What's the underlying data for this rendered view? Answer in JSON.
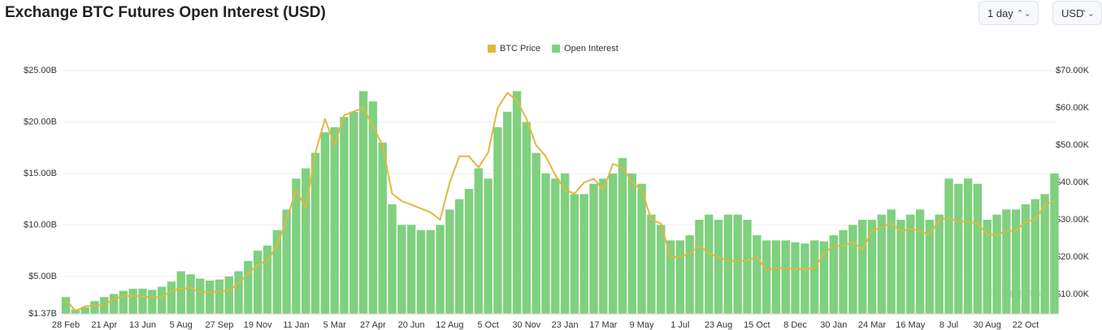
{
  "header": {
    "title": "Exchange BTC Futures Open Interest (USD)",
    "interval": "1 day",
    "currency": "USD"
  },
  "chart_data": {
    "type": "bar",
    "watermark": "coinglass",
    "grid": true,
    "legend": "top",
    "categories": [
      "28 Feb",
      null,
      null,
      null,
      "21 Apr",
      null,
      null,
      null,
      "13 Jun",
      null,
      null,
      null,
      "5 Aug",
      null,
      null,
      null,
      "27 Sep",
      null,
      null,
      null,
      "19 Nov",
      null,
      null,
      null,
      "11 Jan",
      null,
      null,
      null,
      "5 Mar",
      null,
      null,
      null,
      "27 Apr",
      null,
      null,
      null,
      "20 Jun",
      null,
      null,
      null,
      "12 Aug",
      null,
      null,
      null,
      "5 Oct",
      null,
      null,
      null,
      "30 Nov",
      null,
      null,
      null,
      "23 Jan",
      null,
      null,
      null,
      "17 Mar",
      null,
      null,
      null,
      "9 May",
      null,
      null,
      null,
      "1 Jul",
      null,
      null,
      null,
      "23 Aug",
      null,
      null,
      null,
      "15 Oct",
      null,
      null,
      null,
      "8 Dec",
      null,
      null,
      null,
      "30 Jan",
      null,
      null,
      null,
      "24 Mar",
      null,
      null,
      null,
      "16 May",
      null,
      null,
      null,
      "8 Jul",
      null,
      null,
      null,
      "30 Aug",
      null,
      null,
      null,
      "22 Oct",
      null,
      null,
      null
    ],
    "ylim": [
      1.37,
      25
    ],
    "yticks": [
      {
        "value": 1.37,
        "label": "$1.37B"
      },
      {
        "value": 5,
        "label": "$5.00B"
      },
      {
        "value": 10,
        "label": "$10.00B"
      },
      {
        "value": 15,
        "label": "$15.00B"
      },
      {
        "value": 20,
        "label": "$20.00B"
      },
      {
        "value": 25,
        "label": "$25.00B"
      }
    ],
    "y2lim": [
      4.78,
      70
    ],
    "y2ticks": [
      {
        "value": 10,
        "label": "$10.00K"
      },
      {
        "value": 20,
        "label": "$20.00K"
      },
      {
        "value": 30,
        "label": "$30.00K"
      },
      {
        "value": 40,
        "label": "$40.00K"
      },
      {
        "value": 50,
        "label": "$50.00K"
      },
      {
        "value": 60,
        "label": "$60.00K"
      },
      {
        "value": 70,
        "label": "$70.00K"
      }
    ],
    "series": [
      {
        "name": "BTC Price",
        "type": "line",
        "axis": "y2",
        "color": "#e0b83e",
        "values": [
          8.7,
          5.5,
          6.8,
          7.0,
          7.1,
          8.8,
          9.5,
          9.6,
          9.4,
          9.2,
          9.2,
          11.0,
          11.5,
          11.8,
          10.5,
          10.6,
          10.8,
          11.0,
          13.0,
          15.5,
          18.0,
          19,
          23,
          30,
          38,
          33,
          48,
          57,
          50,
          58,
          59,
          60,
          55,
          50,
          37,
          35,
          34,
          33,
          32,
          30,
          40,
          47,
          47,
          44,
          48,
          60,
          64,
          62,
          57,
          50,
          47,
          42,
          38,
          37,
          40,
          41,
          38,
          45,
          44,
          40,
          38,
          30,
          29,
          20,
          20,
          21,
          23,
          21,
          20,
          19,
          19,
          19,
          20,
          16.5,
          17,
          17,
          16.8,
          16.8,
          17,
          21,
          23,
          23,
          24,
          22,
          27,
          28,
          29,
          27,
          27.5,
          27,
          26,
          30,
          30.5,
          29.5,
          29.5,
          29,
          26,
          26,
          27,
          27,
          29.5,
          30,
          34,
          35
        ]
      },
      {
        "name": "Open Interest",
        "type": "bar",
        "axis": "y",
        "color": "#7fd07f",
        "values": [
          3.0,
          1.8,
          2.0,
          2.6,
          3.0,
          3.3,
          3.6,
          3.8,
          3.8,
          3.7,
          4.0,
          4.5,
          5.5,
          5.2,
          4.8,
          4.6,
          4.7,
          5.0,
          5.5,
          6.5,
          7.5,
          8.0,
          9.5,
          11.5,
          14.5,
          15.5,
          17.0,
          19.0,
          19.5,
          20.5,
          21.0,
          23.0,
          22.0,
          18.0,
          12.0,
          10.0,
          10.0,
          9.5,
          9.5,
          10,
          11.5,
          12.5,
          13.5,
          15.5,
          14.5,
          19.5,
          21,
          23,
          20,
          17,
          15,
          14.5,
          15,
          13,
          13,
          14,
          14.5,
          15,
          16.5,
          15,
          14,
          11,
          10,
          8.5,
          8.5,
          9,
          10.5,
          11,
          10.5,
          11,
          11,
          10.5,
          9,
          8.5,
          8.5,
          8.5,
          8.3,
          8.2,
          8.5,
          8.4,
          9.0,
          9.5,
          10,
          10.5,
          10.5,
          11,
          11.5,
          10.5,
          11,
          11.5,
          10.5,
          11,
          14.5,
          14,
          14.5,
          14,
          10.5,
          11,
          11.5,
          11.5,
          12,
          12.5,
          13,
          15
        ]
      }
    ]
  }
}
